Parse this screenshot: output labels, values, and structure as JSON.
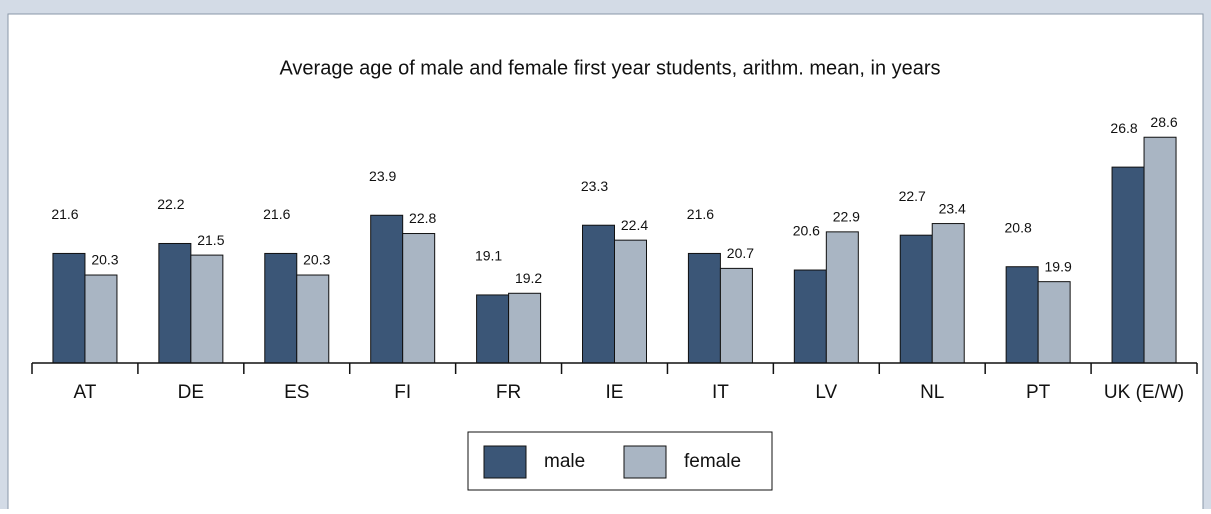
{
  "chart_data": {
    "type": "bar",
    "title": "Average age of male and female first year students, arithm. mean, in years",
    "categories": [
      "AT",
      "DE",
      "ES",
      "FI",
      "FR",
      "IE",
      "IT",
      "LV",
      "NL",
      "PT",
      "UK (E/W)"
    ],
    "series": [
      {
        "name": "male",
        "color": "#3b5677",
        "values": [
          21.6,
          22.2,
          21.6,
          23.9,
          19.1,
          23.3,
          21.6,
          20.6,
          22.7,
          20.8,
          26.8
        ]
      },
      {
        "name": "female",
        "color": "#a9b5c3",
        "values": [
          20.3,
          21.5,
          20.3,
          22.8,
          19.2,
          22.4,
          20.7,
          22.9,
          23.4,
          19.9,
          28.6
        ]
      }
    ],
    "ylim": [
      15,
      30
    ],
    "legend": "bottom"
  }
}
